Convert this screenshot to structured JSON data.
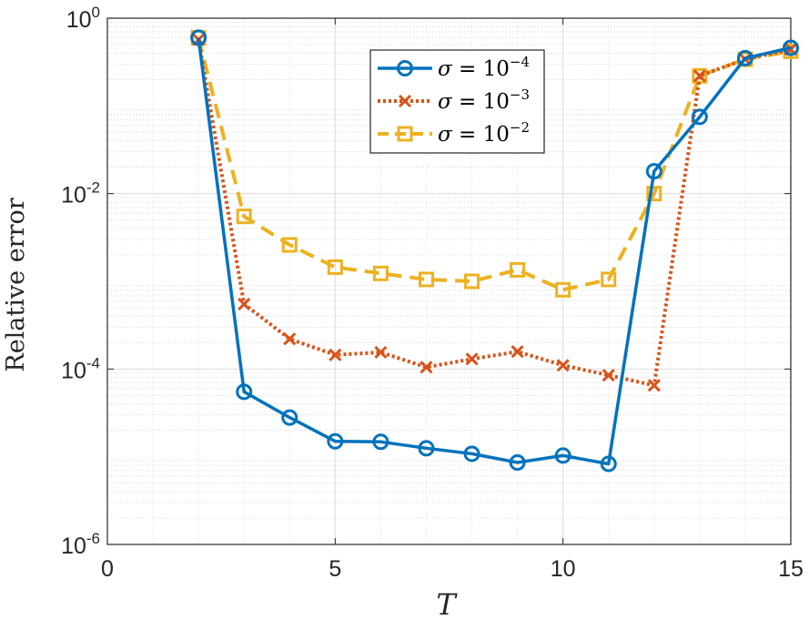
{
  "chart_data": {
    "type": "line",
    "xlabel": "T",
    "ylabel": "Relative error",
    "xlim": [
      0,
      15
    ],
    "ylim": [
      1e-06,
      1
    ],
    "yscale": "log",
    "xticks": [
      0,
      5,
      10,
      15
    ],
    "xtick_labels": [
      "0",
      "5",
      "10",
      "15"
    ],
    "yticks": [
      1e-06,
      0.0001,
      0.01,
      1
    ],
    "ytick_labels": [
      {
        "base": "10",
        "exp": "-6"
      },
      {
        "base": "10",
        "exp": "-4"
      },
      {
        "base": "10",
        "exp": "-2"
      },
      {
        "base": "10",
        "exp": "0"
      }
    ],
    "grid": true,
    "minor_grid": true,
    "legend_position": "top-center",
    "x": [
      2,
      3,
      4,
      5,
      6,
      7,
      8,
      9,
      10,
      11,
      12,
      13,
      14,
      15
    ],
    "series": [
      {
        "name": "σ = 10^-4",
        "legend_prefix": "σ = 10",
        "legend_exp": "−4",
        "color": "#0072BD",
        "line_style": "solid",
        "marker": "circle",
        "values": [
          0.6,
          5.5e-05,
          2.8e-05,
          1.5e-05,
          1.48e-05,
          1.25e-05,
          1.08e-05,
          8.6e-06,
          1.03e-05,
          8.3e-06,
          0.018,
          0.075,
          0.35,
          0.46
        ]
      },
      {
        "name": "σ = 10^-3",
        "legend_prefix": "σ = 10",
        "legend_exp": "−3",
        "color": "#D95319",
        "line_style": "dotted",
        "marker": "x",
        "values": [
          0.57,
          0.00055,
          0.00022,
          0.000145,
          0.000155,
          0.000105,
          0.00013,
          0.000158,
          0.00011,
          8.5e-05,
          6.5e-05,
          0.22,
          0.34,
          0.44
        ]
      },
      {
        "name": "σ = 10^-2",
        "legend_prefix": "σ = 10",
        "legend_exp": "−2",
        "color": "#EDB120",
        "line_style": "dashed",
        "marker": "square",
        "values": [
          0.6,
          0.0055,
          0.0026,
          0.00145,
          0.00123,
          0.00105,
          0.001,
          0.00135,
          0.0008,
          0.00105,
          0.01,
          0.22,
          0.34,
          0.42
        ]
      }
    ]
  }
}
